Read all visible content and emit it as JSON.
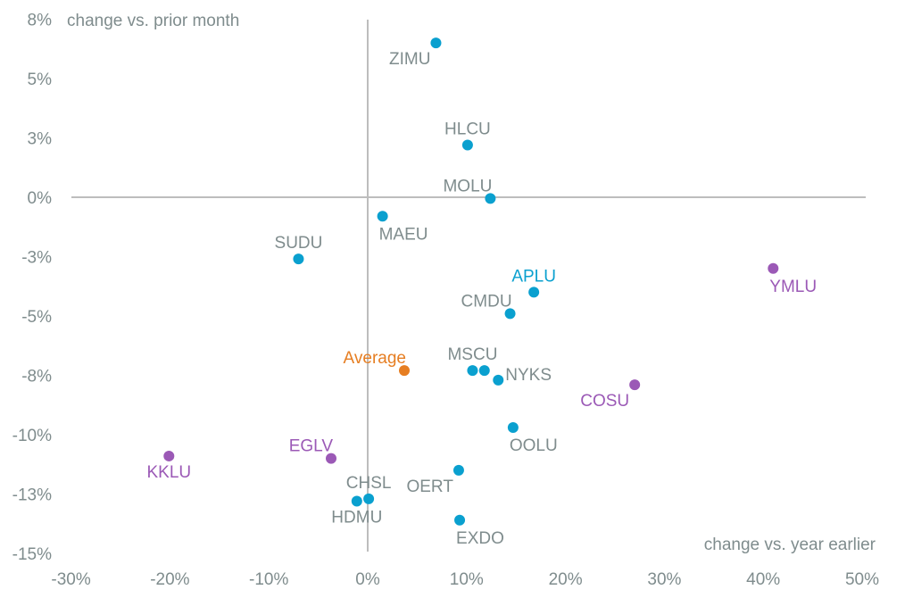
{
  "chart_data": {
    "type": "scatter",
    "title": "",
    "xlabel": "change vs. year earlier",
    "ylabel": "change vs. prior month",
    "xlim": [
      -30,
      50
    ],
    "ylim": [
      -15,
      8
    ],
    "x_ticks": [
      {
        "value": -30,
        "label": "-30%"
      },
      {
        "value": -20,
        "label": "-20%"
      },
      {
        "value": -10,
        "label": "-10%"
      },
      {
        "value": 0,
        "label": "0%"
      },
      {
        "value": 10,
        "label": "10%"
      },
      {
        "value": 20,
        "label": "20%"
      },
      {
        "value": 30,
        "label": "30%"
      },
      {
        "value": 40,
        "label": "40%"
      },
      {
        "value": 50,
        "label": "50%"
      }
    ],
    "y_ticks": [
      {
        "value": 7.5,
        "label": "8%"
      },
      {
        "value": 5,
        "label": "5%"
      },
      {
        "value": 2.5,
        "label": "3%"
      },
      {
        "value": 0,
        "label": "0%"
      },
      {
        "value": -2.5,
        "label": "-3%"
      },
      {
        "value": -5,
        "label": "-5%"
      },
      {
        "value": -7.5,
        "label": "-8%"
      },
      {
        "value": -10,
        "label": "-10%"
      },
      {
        "value": -12.5,
        "label": "-13%"
      },
      {
        "value": -15,
        "label": "-15%"
      }
    ],
    "grid": false,
    "colors": {
      "blue": "#0aa0cf",
      "purple": "#9b59b6",
      "orange": "#e67e22",
      "gray_label": "#7f8c8d"
    },
    "points": [
      {
        "name": "ZIMU",
        "x": 6.9,
        "y": 6.5,
        "group": "blue",
        "label_color": "gray",
        "label_pos": "below-left"
      },
      {
        "name": "HLCU",
        "x": 10.1,
        "y": 2.2,
        "group": "blue",
        "label_color": "gray",
        "label_pos": "above"
      },
      {
        "name": "MOLU",
        "x": 12.4,
        "y": -0.05,
        "group": "blue",
        "label_color": "gray",
        "label_pos": "above-left"
      },
      {
        "name": "MAEU",
        "x": 1.5,
        "y": -0.8,
        "group": "blue",
        "label_color": "gray",
        "label_pos": "below-right"
      },
      {
        "name": "SUDU",
        "x": -7.0,
        "y": -2.6,
        "group": "blue",
        "label_color": "gray",
        "label_pos": "above"
      },
      {
        "name": "APLU",
        "x": 16.8,
        "y": -4.0,
        "group": "blue",
        "label_color": "blue",
        "label_pos": "above"
      },
      {
        "name": "CMDU",
        "x": 14.4,
        "y": -4.9,
        "group": "blue",
        "label_color": "gray",
        "label_pos": "above-left"
      },
      {
        "name": "YMLU",
        "x": 41.0,
        "y": -3.0,
        "group": "purple",
        "label_color": "purple",
        "label_pos": "below-right"
      },
      {
        "name": "Average",
        "x": 3.7,
        "y": -7.3,
        "group": "orange",
        "label_color": "orange",
        "label_pos": "above-left"
      },
      {
        "name": "MSCU",
        "x": 10.6,
        "y": -7.3,
        "group": "blue",
        "label_color": "gray",
        "label_pos": "above"
      },
      {
        "name": "",
        "x": 11.8,
        "y": -7.3,
        "group": "blue",
        "label_color": "gray",
        "label_pos": "none"
      },
      {
        "name": "NYKS",
        "x": 13.2,
        "y": -7.7,
        "group": "blue",
        "label_color": "gray",
        "label_pos": "right"
      },
      {
        "name": "COSU",
        "x": 27.0,
        "y": -7.9,
        "group": "purple",
        "label_color": "purple",
        "label_pos": "below-left"
      },
      {
        "name": "OOLU",
        "x": 14.7,
        "y": -9.7,
        "group": "blue",
        "label_color": "gray",
        "label_pos": "below-right"
      },
      {
        "name": "KKLU",
        "x": -20.1,
        "y": -10.9,
        "group": "purple",
        "label_color": "purple",
        "label_pos": "below"
      },
      {
        "name": "EGLV",
        "x": -3.7,
        "y": -11.0,
        "group": "purple",
        "label_color": "purple",
        "label_pos": "above-left"
      },
      {
        "name": "OERT",
        "x": 9.2,
        "y": -11.5,
        "group": "blue",
        "label_color": "gray",
        "label_pos": "below-left"
      },
      {
        "name": "CHSL",
        "x": 0.1,
        "y": -12.7,
        "group": "blue",
        "label_color": "gray",
        "label_pos": "above"
      },
      {
        "name": "HDMU",
        "x": -1.1,
        "y": -12.8,
        "group": "blue",
        "label_color": "gray",
        "label_pos": "below"
      },
      {
        "name": "EXDO",
        "x": 9.3,
        "y": -13.6,
        "group": "blue",
        "label_color": "gray",
        "label_pos": "below-right"
      }
    ]
  }
}
